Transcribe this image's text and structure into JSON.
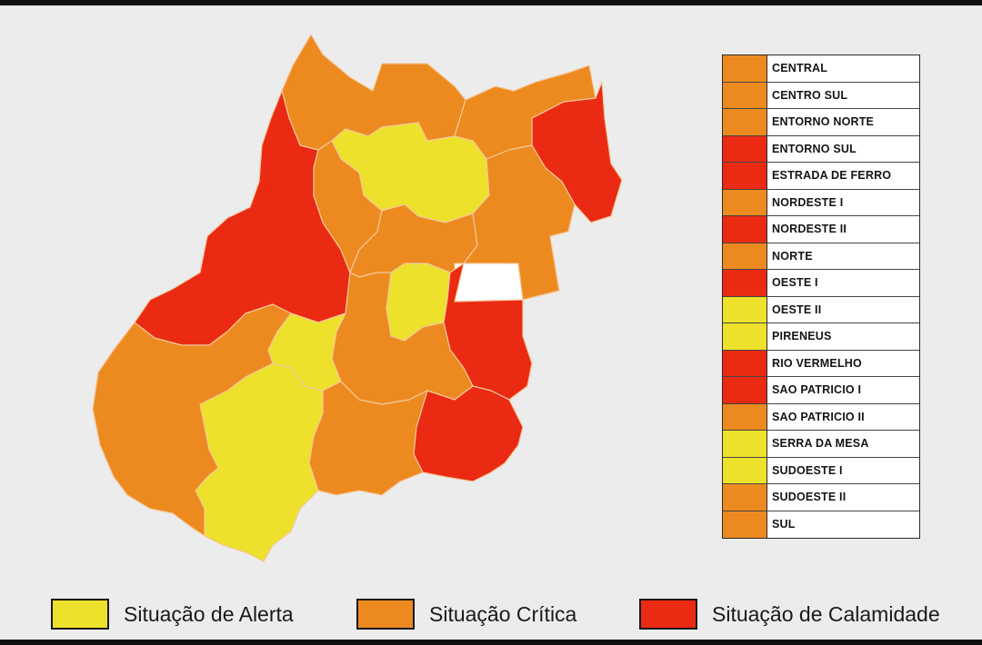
{
  "colors": {
    "alerta": "#eee12b",
    "critica": "#ed8a1f",
    "calamidade": "#ea2a12",
    "empty": "#ffffff"
  },
  "regions": [
    {
      "name": "CENTRAL",
      "status": "critica"
    },
    {
      "name": "CENTRO SUL",
      "status": "critica"
    },
    {
      "name": "ENTORNO NORTE",
      "status": "critica"
    },
    {
      "name": "ENTORNO SUL",
      "status": "calamidade"
    },
    {
      "name": "ESTRADA DE FERRO",
      "status": "calamidade"
    },
    {
      "name": "NORDESTE I",
      "status": "critica"
    },
    {
      "name": "NORDESTE II",
      "status": "calamidade"
    },
    {
      "name": "NORTE",
      "status": "critica"
    },
    {
      "name": "OESTE I",
      "status": "calamidade"
    },
    {
      "name": "OESTE II",
      "status": "alerta"
    },
    {
      "name": "PIRENEUS",
      "status": "alerta"
    },
    {
      "name": "RIO VERMELHO",
      "status": "calamidade"
    },
    {
      "name": "SAO PATRICIO I",
      "status": "calamidade"
    },
    {
      "name": "SAO PATRICIO II",
      "status": "critica"
    },
    {
      "name": "SERRA DA MESA",
      "status": "alerta"
    },
    {
      "name": "SUDOESTE I",
      "status": "alerta"
    },
    {
      "name": "SUDOESTE II",
      "status": "critica"
    },
    {
      "name": "SUL",
      "status": "critica"
    }
  ],
  "legend": {
    "alerta": "Situação de Alerta",
    "critica": "Situação Crítica",
    "calamidade": "Situação de Calamidade"
  }
}
